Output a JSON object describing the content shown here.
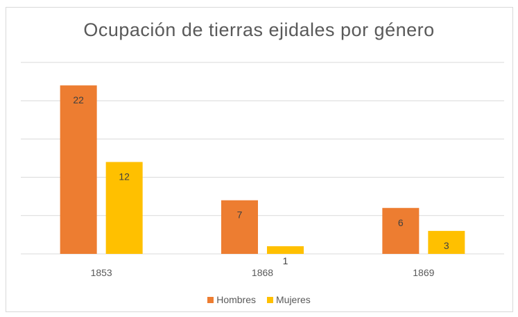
{
  "chart_data": {
    "type": "bar",
    "title": "Ocupación de tierras ejidales por género",
    "categories": [
      "1853",
      "1868",
      "1869"
    ],
    "series": [
      {
        "name": "Hombres",
        "values": [
          22,
          7,
          6
        ],
        "color": "#ED7D31"
      },
      {
        "name": "Mujeres",
        "values": [
          12,
          1,
          3
        ],
        "color": "#FFC000"
      }
    ],
    "ylim": [
      0,
      25
    ],
    "grid": true,
    "legend_position": "bottom",
    "data_labels": true
  }
}
